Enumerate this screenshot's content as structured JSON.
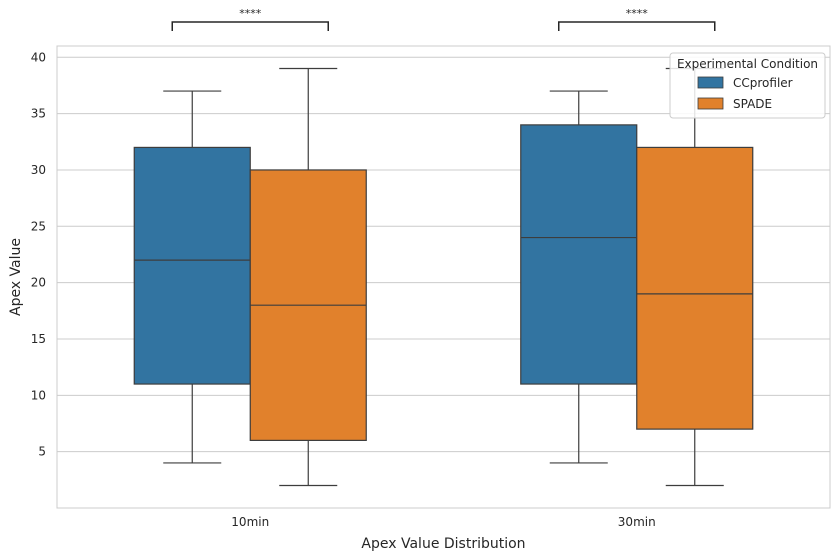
{
  "chart_data": {
    "type": "box",
    "xlabel": "Apex Value Distribution",
    "ylabel": "Apex Value",
    "ylim": [
      0,
      41
    ],
    "yticks": [
      5,
      10,
      15,
      20,
      25,
      30,
      35,
      40
    ],
    "categories": [
      "10min",
      "30min"
    ],
    "grid": true,
    "legend": {
      "title": "Experimental Condition",
      "placement": "top-right"
    },
    "series": [
      {
        "name": "CCprofiler",
        "color": "#3274a1",
        "boxes": [
          {
            "min": 4,
            "q1": 11,
            "median": 22,
            "q3": 32,
            "max": 37
          },
          {
            "min": 4,
            "q1": 11,
            "median": 24,
            "q3": 34,
            "max": 37
          }
        ]
      },
      {
        "name": "SPADE",
        "color": "#e1812c",
        "boxes": [
          {
            "min": 2,
            "q1": 6,
            "median": 18,
            "q3": 30,
            "max": 39
          },
          {
            "min": 2,
            "q1": 7,
            "median": 19,
            "q3": 32,
            "max": 39
          }
        ]
      }
    ],
    "annotations": [
      {
        "category": "10min",
        "text": "****"
      },
      {
        "category": "30min",
        "text": "****"
      }
    ]
  }
}
